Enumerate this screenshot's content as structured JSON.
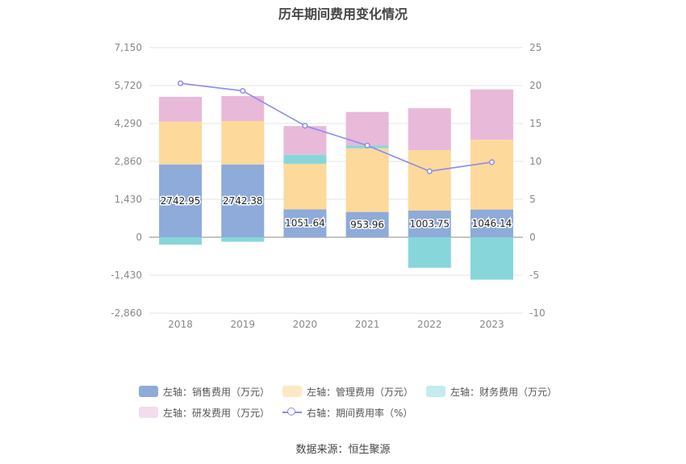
{
  "chart_data": {
    "type": "bar",
    "title": "历年期间费用变化情况",
    "categories": [
      "2018",
      "2019",
      "2020",
      "2021",
      "2022",
      "2023"
    ],
    "left_axis": {
      "ticks": [
        "7,150",
        "5,720",
        "4,290",
        "2,860",
        "1,430",
        "0",
        "-1,430",
        "-2,860"
      ],
      "ylim": [
        -2860,
        7150
      ]
    },
    "right_axis": {
      "ticks": [
        "25",
        "20",
        "15",
        "10",
        "5",
        "0",
        "-5",
        "-10"
      ],
      "ylim": [
        -10,
        25
      ]
    },
    "series": [
      {
        "name": "左轴：销售费用（万元）",
        "color": "#8eabd9",
        "values": [
          2742.95,
          2742.38,
          1051.64,
          953.96,
          1003.75,
          1046.14
        ],
        "labels": [
          "2742.95",
          "2742.38",
          "1051.64",
          "953.96",
          "1003.75",
          "1046.14"
        ]
      },
      {
        "name": "左轴：管理费用（万元）",
        "color": "#fdd99b",
        "values": [
          1620,
          1640,
          1720,
          2400,
          2280,
          2630
        ]
      },
      {
        "name": "左轴：财务费用（万元）",
        "color": "#87d6da",
        "values": [
          -280,
          -170,
          340,
          110,
          -1150,
          -1600
        ]
      },
      {
        "name": "左轴：研发费用（万元）",
        "color": "#e8b9d9",
        "values": [
          930,
          940,
          1080,
          1260,
          1580,
          1900
        ]
      },
      {
        "name": "右轴：期间费用率（%）",
        "color": "#8a8cf0",
        "axis": "right",
        "type": "line",
        "values": [
          20.3,
          19.3,
          14.7,
          12.1,
          8.7,
          9.9
        ]
      }
    ],
    "legend_position": "bottom",
    "grid": true,
    "source": "数据来源：恒生聚源"
  }
}
